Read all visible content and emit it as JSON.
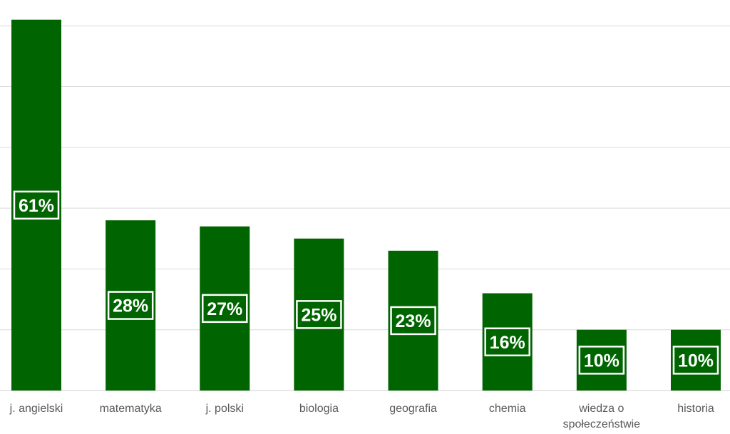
{
  "chart_data": {
    "type": "bar",
    "categories": [
      "j. angielski",
      "matematyka",
      "j. polski",
      "biologia",
      "geografia",
      "chemia",
      "wiedza o społeczeństwie",
      "historia"
    ],
    "category_lines": [
      [
        "j. angielski"
      ],
      [
        "matematyka"
      ],
      [
        "j. polski"
      ],
      [
        "biologia"
      ],
      [
        "geografia"
      ],
      [
        "chemia"
      ],
      [
        "wiedza o",
        "społeczeństwie"
      ],
      [
        "historia"
      ]
    ],
    "values": [
      61,
      28,
      27,
      25,
      23,
      16,
      10,
      10
    ],
    "value_labels": [
      "61%",
      "28%",
      "27%",
      "25%",
      "23%",
      "16%",
      "10%",
      "10%"
    ],
    "ylim": [
      0,
      60
    ],
    "grid": true,
    "legend": "none",
    "title": "",
    "xlabel": "",
    "ylabel": "",
    "colors": {
      "bar": "#006400",
      "grid": "#d9d9d9",
      "label_text": "#ffffff",
      "category_text": "#595959"
    }
  }
}
